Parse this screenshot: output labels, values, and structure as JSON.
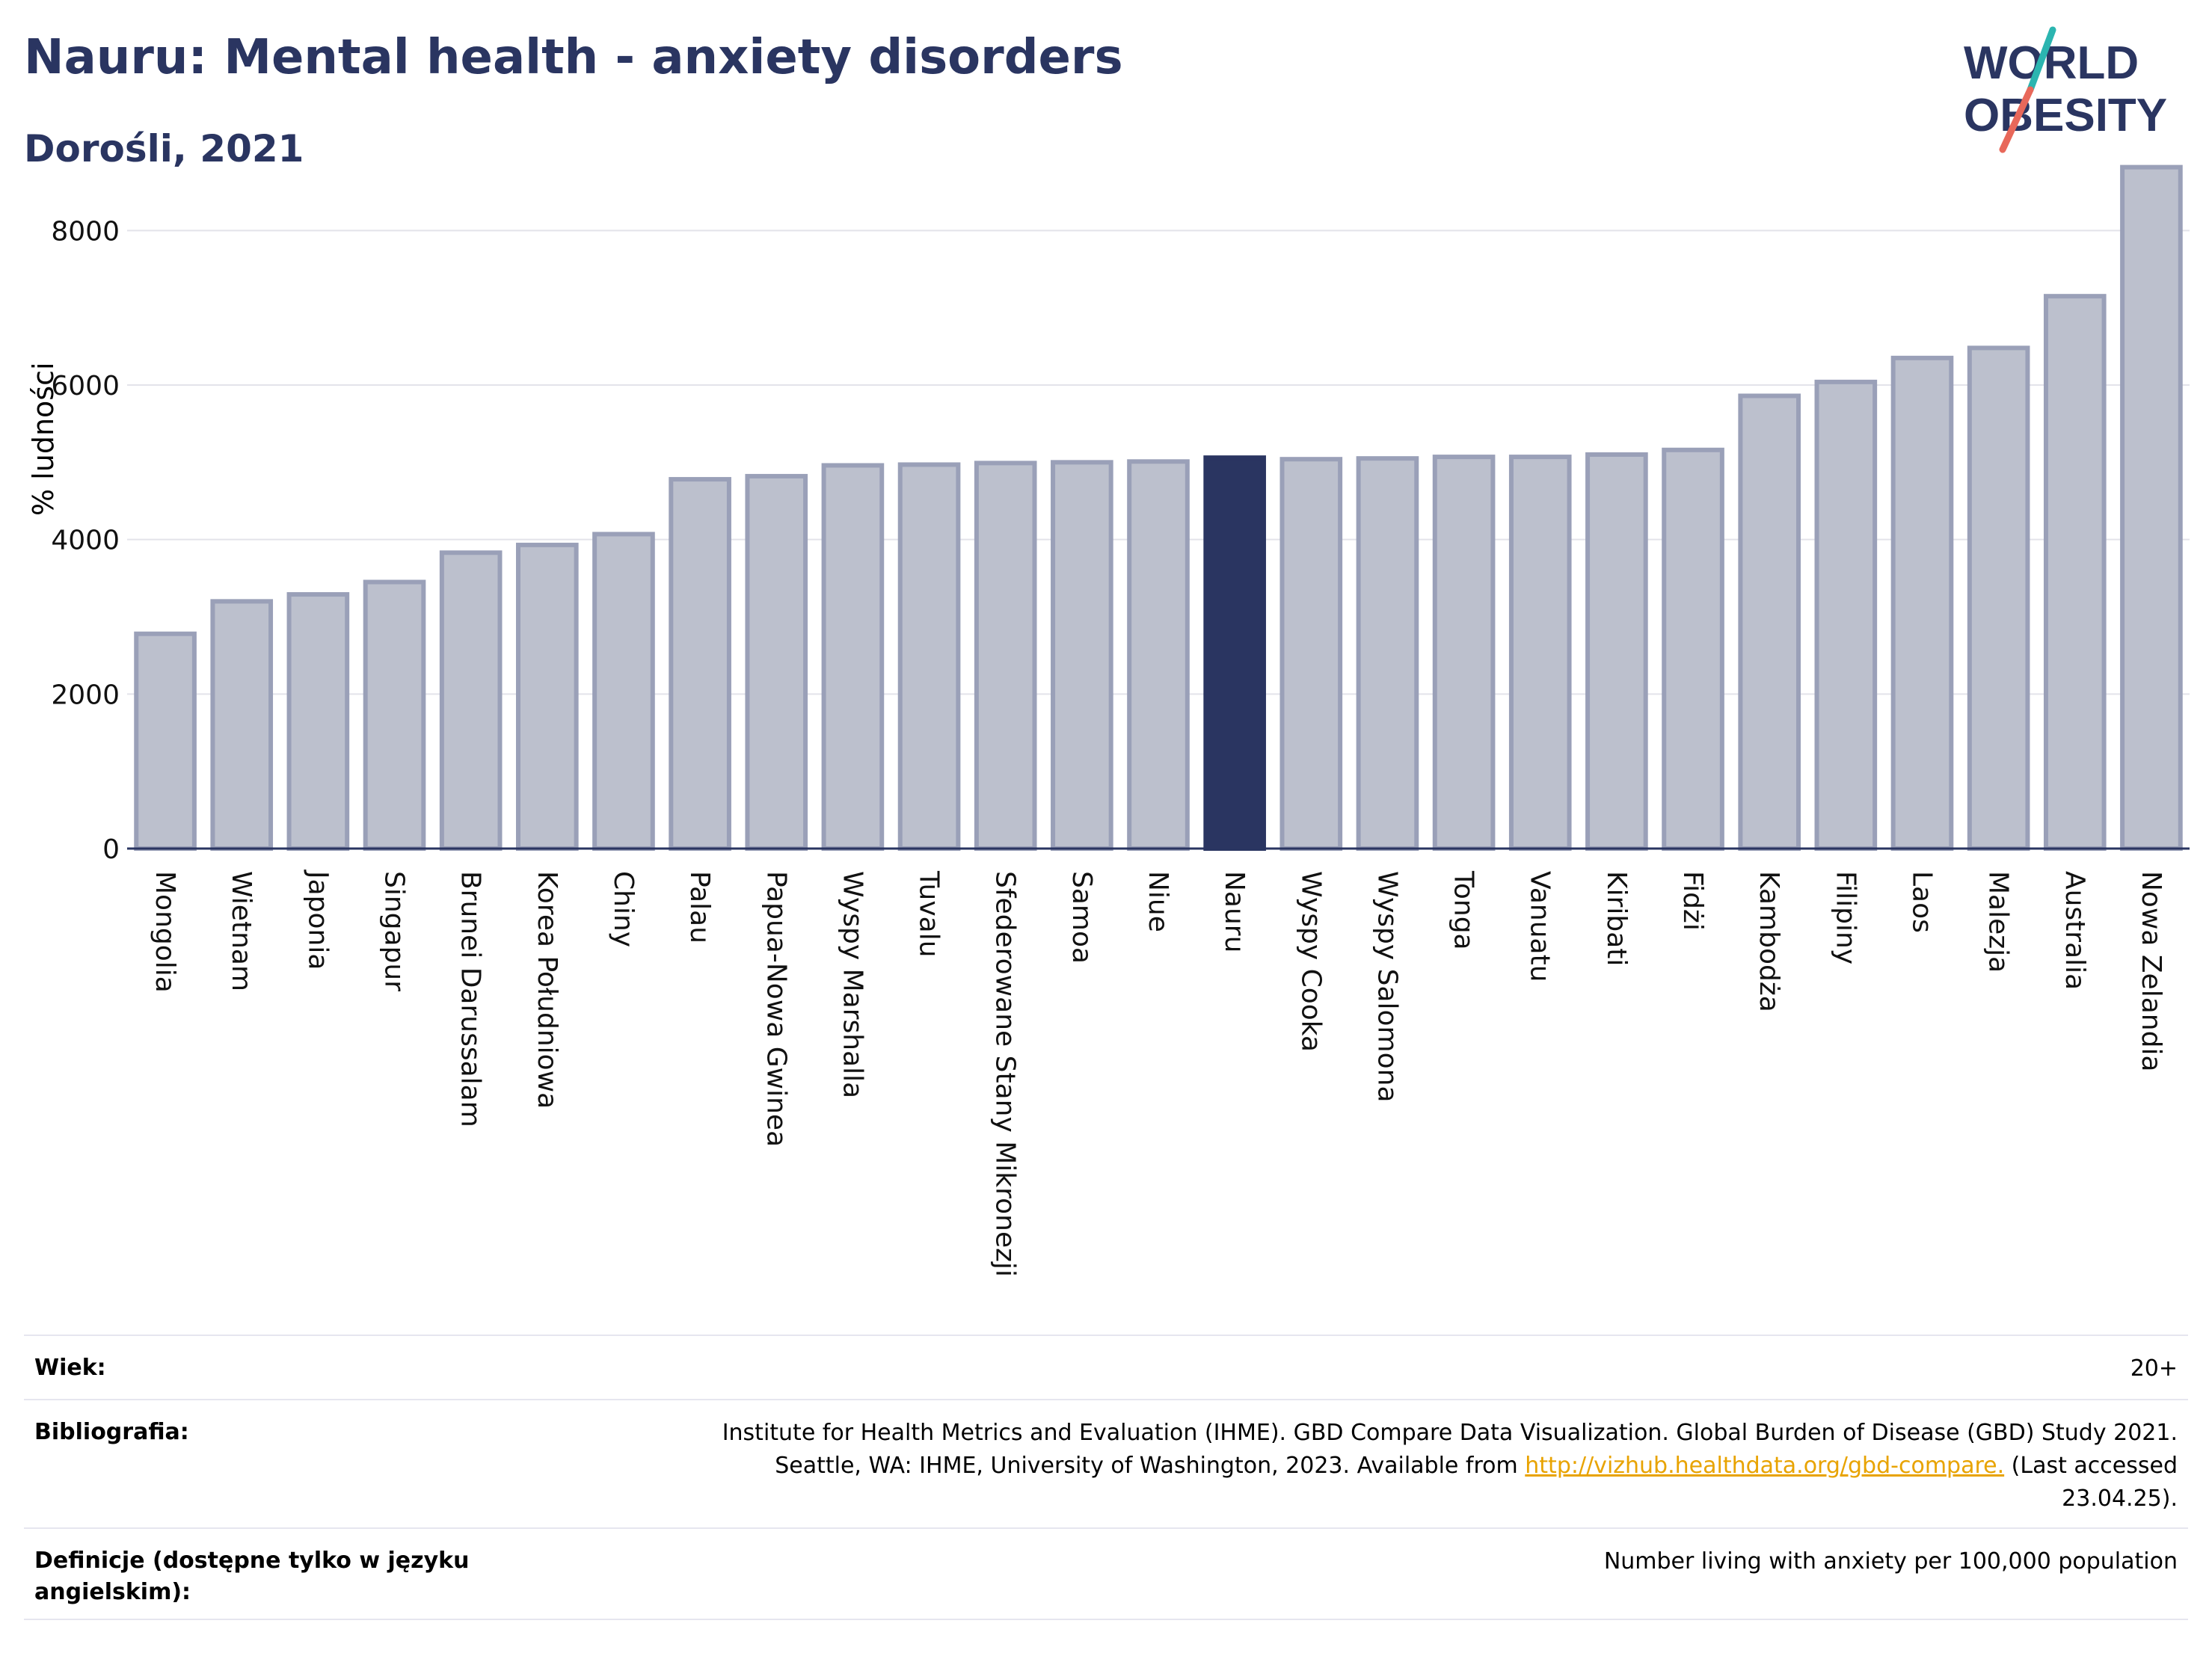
{
  "title": "Nauru: Mental health - anxiety disorders",
  "subtitle": "Dorośli, 2021",
  "logo": {
    "line1": "WORLD",
    "line2": "OBESITY",
    "colors": {
      "text": "#2a3561",
      "slash_top": "#2bb5b0",
      "slash_bottom": "#e8685a"
    }
  },
  "colors": {
    "bar": "#bcc0cd",
    "bar_border": "#9aa0b8",
    "highlight": "#2a3561",
    "grid": "#e3e3ea",
    "axis": "#2a3561"
  },
  "chart_data": {
    "type": "bar",
    "ylabel": "% ludności",
    "ylim": [
      0,
      9000
    ],
    "yticks": [
      0,
      2000,
      4000,
      6000,
      8000
    ],
    "grid": true,
    "highlight": "Nauru",
    "categories": [
      "Mongolia",
      "Wietnam",
      "Japonia",
      "Singapur",
      "Brunei Darussalam",
      "Korea Południowa",
      "Chiny",
      "Palau",
      "Papua-Nowa Gwinea",
      "Wyspy Marshalla",
      "Tuvalu",
      "Sfederowane Stany Mikronezji",
      "Samoa",
      "Niue",
      "Nauru",
      "Wyspy Cooka",
      "Wyspy Salomona",
      "Tonga",
      "Vanuatu",
      "Kiribati",
      "Fidżi",
      "Kambodża",
      "Filipiny",
      "Laos",
      "Malezja",
      "Australia",
      "Nowa Zelandia"
    ],
    "values": [
      2780,
      3200,
      3290,
      3450,
      3830,
      3930,
      4070,
      4780,
      4820,
      4960,
      4970,
      4990,
      5000,
      5010,
      5060,
      5040,
      5050,
      5070,
      5070,
      5100,
      5160,
      5860,
      6040,
      6350,
      6480,
      7150,
      8820
    ]
  },
  "meta": {
    "age_label": "Wiek:",
    "age_value": "20+",
    "bib_label": "Bibliografia:",
    "bib_line1": "Institute for Health Metrics and Evaluation (IHME). GBD Compare Data Visualization. Global Burden of Disease (GBD) Study 2021.",
    "bib_line2_pre": "Seattle, WA: IHME, University of Washington, 2023. Available from ",
    "bib_link": "http://vizhub.healthdata.org/gbd-compare.",
    "bib_line2_post": " (Last accessed",
    "bib_line3": "23.04.25).",
    "def_label": "Definicje (dostępne tylko w języku angielskim):",
    "def_value": "Number living with anxiety per 100,000 population"
  }
}
